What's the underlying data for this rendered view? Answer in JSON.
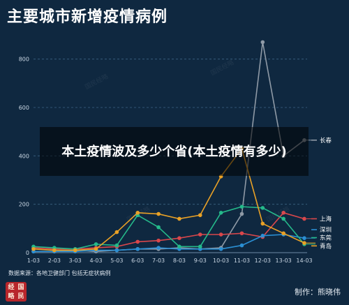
{
  "title": "主要城市新增疫情病例",
  "banner_text": "本土疫情波及多少个省(本土疫情有多少)",
  "source_text": "数据来源：各地卫健部门 包括无症状病例",
  "logo_text": [
    "经",
    "国",
    "略",
    "民"
  ],
  "credit_text": "制作：熊晓伟",
  "watermark": "国民经略",
  "chart_data": {
    "type": "line",
    "title": "主要城市新增疫情病例",
    "categories": [
      "1-03",
      "2-03",
      "3-03",
      "4-03",
      "5-03",
      "6-03",
      "7-03",
      "8-03",
      "9-03",
      "10-03",
      "11-03",
      "12-03",
      "13-03",
      "14-03"
    ],
    "ylim": [
      0,
      900
    ],
    "yticks": [
      0,
      200,
      400,
      600,
      800
    ],
    "grid": true,
    "legend_placement": "right",
    "series": [
      {
        "name": "长春",
        "color": "#8f9aa6",
        "values": [
          5,
          5,
          10,
          5,
          10,
          15,
          15,
          20,
          15,
          20,
          160,
          870,
          400,
          465
        ]
      },
      {
        "name": "上海",
        "color": "#d9474b",
        "values": [
          20,
          15,
          15,
          20,
          25,
          45,
          50,
          60,
          75,
          75,
          80,
          65,
          165,
          140
        ]
      },
      {
        "name": "深圳",
        "color": "#2b8fd3",
        "values": [
          5,
          5,
          5,
          10,
          10,
          15,
          20,
          15,
          15,
          15,
          30,
          70,
          75,
          60
        ]
      },
      {
        "name": "东莞",
        "color": "#25b98a",
        "values": [
          25,
          20,
          15,
          35,
          30,
          155,
          105,
          25,
          25,
          165,
          190,
          185,
          140,
          35
        ]
      },
      {
        "name": "青岛",
        "color": "#e9a126",
        "values": [
          15,
          10,
          10,
          15,
          85,
          165,
          160,
          140,
          155,
          315,
          430,
          120,
          80,
          40
        ]
      }
    ]
  }
}
